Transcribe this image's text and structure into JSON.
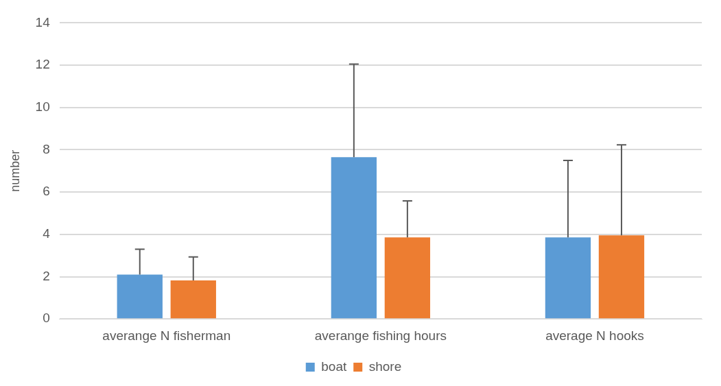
{
  "chart_data": {
    "type": "bar",
    "ylabel": "number",
    "categories": [
      "averange N fisherman",
      "averange fishing hours",
      "average N hooks"
    ],
    "series": [
      {
        "name": "boat",
        "color": "#5b9bd5",
        "values": [
          2.1,
          7.65,
          3.86
        ],
        "errors": [
          [
            2.1,
            3.3
          ],
          [
            7.65,
            12.05
          ],
          [
            3.86,
            7.5
          ]
        ]
      },
      {
        "name": "shore",
        "color": "#ed7d31",
        "values": [
          1.82,
          3.86,
          3.95
        ],
        "errors": [
          [
            1.82,
            2.93
          ],
          [
            3.86,
            5.58
          ],
          [
            3.95,
            8.23
          ]
        ]
      }
    ],
    "ylim": [
      0,
      14
    ],
    "yticks": [
      0,
      2,
      4,
      6,
      8,
      10,
      12,
      14
    ],
    "grid": "y",
    "legend": "bottom"
  }
}
